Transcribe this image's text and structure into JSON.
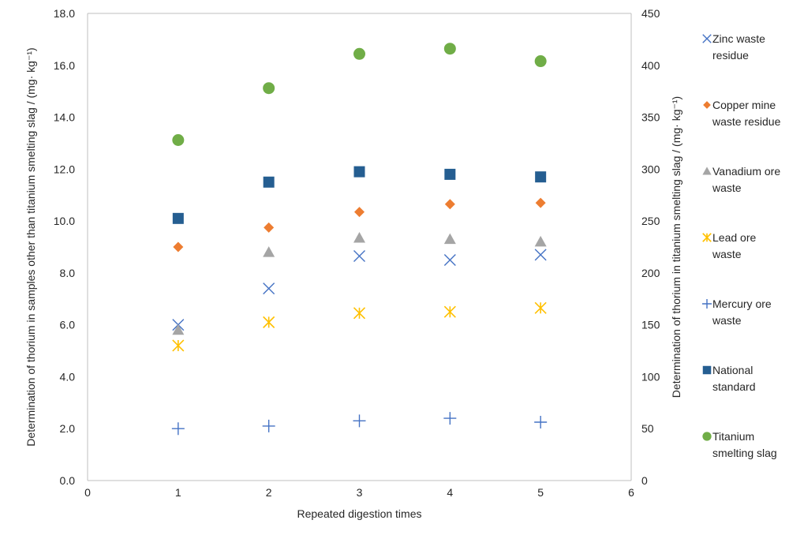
{
  "chart_data": {
    "type": "scatter",
    "xlabel": "Repeated digestion times",
    "ylabel_left": "Determination of thorium in samples other than titanium smelting slag / (mg· kg⁻¹)",
    "ylabel_right": "Determination of thorium in titanium smelting slag / (mg· kg⁻¹)",
    "xlim": [
      0,
      6
    ],
    "ylim_left": [
      0,
      18
    ],
    "ylim_right": [
      0,
      450
    ],
    "x_ticks": [
      "0",
      "1",
      "2",
      "3",
      "4",
      "5",
      "6"
    ],
    "y_left_ticks": [
      "0.0",
      "2.0",
      "4.0",
      "6.0",
      "8.0",
      "10.0",
      "12.0",
      "14.0",
      "16.0",
      "18.0"
    ],
    "y_right_ticks": [
      "0",
      "50",
      "100",
      "150",
      "200",
      "250",
      "300",
      "350",
      "400",
      "450"
    ],
    "grid": false,
    "legend_position": "right",
    "series": [
      {
        "name": "Zinc waste residue",
        "legend_lines": [
          "Zinc waste",
          "residue"
        ],
        "axis": "left",
        "marker": "x",
        "color": "#4472C4",
        "x": [
          1,
          2,
          3,
          4,
          5
        ],
        "y": [
          6.0,
          7.4,
          8.65,
          8.5,
          8.7
        ]
      },
      {
        "name": "Copper mine waste residue",
        "legend_lines": [
          "Copper mine",
          "waste residue"
        ],
        "axis": "left",
        "marker": "diamond",
        "color": "#ED7D31",
        "x": [
          1,
          2,
          3,
          4,
          5
        ],
        "y": [
          9.0,
          9.75,
          10.35,
          10.65,
          10.7
        ]
      },
      {
        "name": "Vanadium ore waste",
        "legend_lines": [
          "Vanadium ore",
          "waste"
        ],
        "axis": "left",
        "marker": "triangle",
        "color": "#A5A5A5",
        "x": [
          1,
          2,
          3,
          4,
          5
        ],
        "y": [
          5.8,
          8.8,
          9.35,
          9.3,
          9.2
        ]
      },
      {
        "name": "Lead ore waste",
        "legend_lines": [
          "Lead ore",
          "waste"
        ],
        "axis": "left",
        "marker": "asterisk",
        "color": "#FFC000",
        "x": [
          1,
          2,
          3,
          4,
          5
        ],
        "y": [
          5.2,
          6.1,
          6.45,
          6.5,
          6.65
        ]
      },
      {
        "name": "Mercury ore waste",
        "legend_lines": [
          "Mercury ore",
          "waste"
        ],
        "axis": "left",
        "marker": "plus",
        "color": "#4472C4",
        "x": [
          1,
          2,
          3,
          4,
          5
        ],
        "y": [
          2.0,
          2.1,
          2.3,
          2.4,
          2.25
        ]
      },
      {
        "name": "National standard",
        "legend_lines": [
          "National",
          "standard"
        ],
        "axis": "left",
        "marker": "square",
        "color": "#255E91",
        "x": [
          1,
          2,
          3,
          4,
          5
        ],
        "y": [
          10.1,
          11.5,
          11.9,
          11.8,
          11.7
        ]
      },
      {
        "name": "Titanium smelting slag",
        "legend_lines": [
          "Titanium",
          "smelting slag"
        ],
        "axis": "right",
        "marker": "circle",
        "color": "#70AD47",
        "x": [
          1,
          2,
          3,
          4,
          5
        ],
        "y": [
          328,
          378,
          411,
          416,
          404
        ]
      }
    ]
  }
}
